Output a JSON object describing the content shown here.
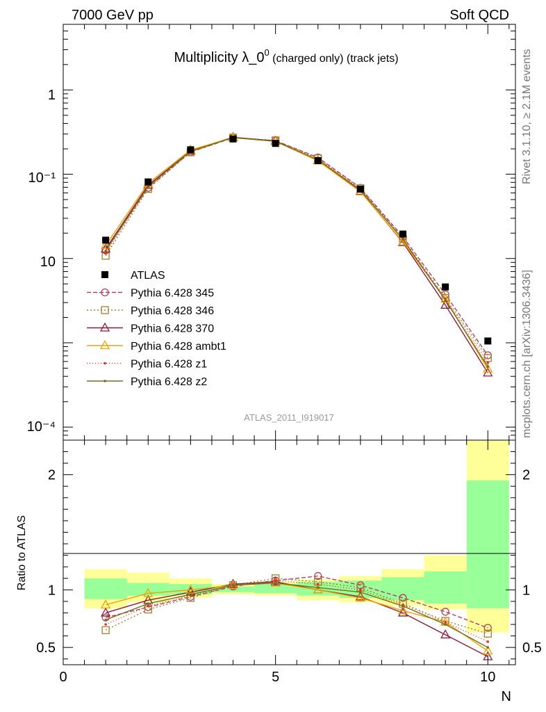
{
  "header": {
    "left": "7000 GeV pp",
    "right": "Soft QCD",
    "title_main": "Multiplicity λ_0",
    "title_sup": "0",
    "title_suffix": " (charged only) (track jets)"
  },
  "side_labels": {
    "rivet": "Rivet 3.1.10, ≥ 2.1M events",
    "mcplots": "mcplots.cern.ch [arXiv:1306.3436]"
  },
  "reference_label": "ATLAS_2011_I919017",
  "colors": {
    "band_inner": "#99ff99",
    "band_outer": "#ffff99",
    "data": "#000000"
  },
  "chart_data": [
    {
      "type": "line",
      "name": "main",
      "yscale": "log",
      "xlim": [
        0,
        10.65
      ],
      "ylim": [
        7e-05,
        6
      ],
      "ytick_labels": [
        "1",
        "10⁻¹",
        "10",
        "10⁻⁴"
      ],
      "x": [
        1,
        2,
        3,
        4,
        5,
        6,
        7,
        8,
        9,
        10
      ],
      "series": [
        {
          "name": "ATLAS",
          "color": "#000000",
          "marker": "square",
          "dash": "none",
          "values": [
            0.0165,
            0.081,
            0.195,
            0.262,
            0.232,
            0.145,
            0.0665,
            0.0195,
            0.0046,
            0.00105
          ]
        },
        {
          "name": "Pythia 6.428 345",
          "color": "#b04060",
          "marker": "circle",
          "dash": "6,3",
          "values": [
            0.0125,
            0.069,
            0.184,
            0.27,
            0.25,
            0.158,
            0.069,
            0.0181,
            0.00375,
            0.00071
          ]
        },
        {
          "name": "Pythia 6.428 346",
          "color": "#a08030",
          "marker": "square-open",
          "dash": "2,3",
          "values": [
            0.0108,
            0.067,
            0.182,
            0.272,
            0.252,
            0.154,
            0.068,
            0.0172,
            0.0034,
            0.00066
          ]
        },
        {
          "name": "Pythia 6.428 370",
          "color": "#8b1a3a",
          "marker": "triangle",
          "dash": "none",
          "values": [
            0.013,
            0.074,
            0.19,
            0.275,
            0.248,
            0.145,
            0.063,
            0.0155,
            0.0028,
            0.00044
          ]
        },
        {
          "name": "Pythia 6.428 ambt1",
          "color": "#f0a000",
          "marker": "triangle",
          "dash": "none",
          "values": [
            0.0143,
            0.078,
            0.194,
            0.272,
            0.245,
            0.144,
            0.062,
            0.0158,
            0.0033,
            0.00049
          ]
        },
        {
          "name": "Pythia 6.428 z1",
          "color": "#e03020",
          "marker": "dot",
          "dash": "1,3",
          "values": [
            0.0115,
            0.07,
            0.186,
            0.272,
            0.248,
            0.152,
            0.067,
            0.0172,
            0.0033,
            0.00058
          ]
        },
        {
          "name": "Pythia 6.428 z2",
          "color": "#707020",
          "marker": "dot",
          "dash": "none",
          "values": [
            0.0123,
            0.072,
            0.188,
            0.272,
            0.246,
            0.148,
            0.065,
            0.0168,
            0.0032,
            0.00052
          ]
        }
      ]
    },
    {
      "type": "line",
      "name": "ratio",
      "ylabel": "Ratio to ATLAS",
      "xlabel": "N",
      "xlim": [
        0,
        10.65
      ],
      "ylim": [
        0.35,
        2.3
      ],
      "x_ticks": [
        0,
        5,
        10
      ],
      "y_ticks": [
        0.5,
        1,
        2
      ],
      "y_tick_labels": [
        "0.5",
        "1",
        "2"
      ],
      "bands": {
        "x_edges": [
          0.5,
          1.5,
          2.5,
          3.5,
          4.5,
          5.5,
          6.5,
          7.5,
          8.5,
          9.5,
          10.5
        ],
        "inner": [
          [
            0.92,
            1.1
          ],
          [
            0.95,
            1.06
          ],
          [
            0.96,
            1.05
          ],
          [
            0.98,
            1.03
          ],
          [
            0.97,
            1.05
          ],
          [
            0.95,
            1.07
          ],
          [
            0.93,
            1.08
          ],
          [
            0.91,
            1.11
          ],
          [
            0.88,
            1.16
          ],
          [
            0.84,
            1.95
          ]
        ],
        "outer": [
          [
            0.84,
            1.18
          ],
          [
            0.89,
            1.15
          ],
          [
            0.93,
            1.1
          ],
          [
            0.96,
            1.05
          ],
          [
            0.95,
            1.07
          ],
          [
            0.91,
            1.09
          ],
          [
            0.89,
            1.12
          ],
          [
            0.86,
            1.18
          ],
          [
            0.83,
            1.3
          ],
          [
            0.63,
            2.3
          ]
        ]
      },
      "series": [
        {
          "name": "Pythia 6.428 345",
          "values": [
            0.76,
            0.85,
            0.94,
            1.03,
            1.08,
            1.12,
            1.04,
            0.93,
            0.81,
            0.67
          ]
        },
        {
          "name": "Pythia 6.428 346",
          "values": [
            0.65,
            0.83,
            0.93,
            1.04,
            1.1,
            1.07,
            1.02,
            0.88,
            0.73,
            0.62
          ]
        },
        {
          "name": "Pythia 6.428 370",
          "values": [
            0.8,
            0.91,
            0.98,
            1.05,
            1.07,
            1.0,
            0.94,
            0.8,
            0.61,
            0.42
          ]
        },
        {
          "name": "Pythia 6.428 ambt1",
          "values": [
            0.87,
            0.97,
            1.0,
            1.04,
            1.06,
            1.0,
            0.93,
            0.82,
            0.72,
            0.47
          ]
        },
        {
          "name": "Pythia 6.428 z1",
          "values": [
            0.7,
            0.86,
            0.95,
            1.04,
            1.08,
            1.05,
            1.0,
            0.87,
            0.72,
            0.55
          ]
        },
        {
          "name": "Pythia 6.428 z2",
          "values": [
            0.74,
            0.88,
            0.96,
            1.04,
            1.06,
            1.02,
            0.98,
            0.86,
            0.7,
            0.5
          ]
        }
      ]
    }
  ]
}
